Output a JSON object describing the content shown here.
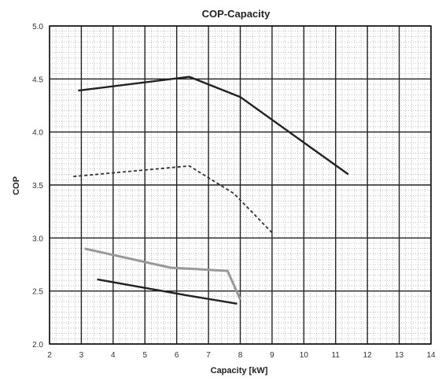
{
  "chart_data": {
    "type": "line",
    "title": "COP-Capacity",
    "xlabel": "Capacity [kW]",
    "ylabel": "COP",
    "xlim": [
      2,
      14
    ],
    "ylim": [
      2.0,
      5.0
    ],
    "x_ticks": [
      "2",
      "3",
      "4",
      "5",
      "6",
      "7",
      "8",
      "9",
      "10",
      "11",
      "12",
      "13",
      "14"
    ],
    "y_ticks": [
      "2.0",
      "2.5",
      "3.0",
      "3.5",
      "4.0",
      "4.5",
      "5.0"
    ],
    "grid": true,
    "series": [
      {
        "style": "solid",
        "color": "#222222",
        "points": [
          [
            2.9,
            4.39
          ],
          [
            6.4,
            4.52
          ],
          [
            8.0,
            4.33
          ],
          [
            11.4,
            3.6
          ]
        ]
      },
      {
        "style": "dashed",
        "color": "#333333",
        "points": [
          [
            2.75,
            3.58
          ],
          [
            6.4,
            3.68
          ],
          [
            7.8,
            3.42
          ],
          [
            9.0,
            3.05
          ]
        ]
      },
      {
        "style": "solid",
        "color": "#999999",
        "points": [
          [
            3.1,
            2.9
          ],
          [
            5.8,
            2.72
          ],
          [
            7.6,
            2.69
          ],
          [
            8.0,
            2.42
          ]
        ]
      },
      {
        "style": "solid",
        "color": "#222222",
        "points": [
          [
            3.5,
            2.61
          ],
          [
            6.3,
            2.46
          ],
          [
            7.9,
            2.38
          ]
        ]
      }
    ]
  }
}
